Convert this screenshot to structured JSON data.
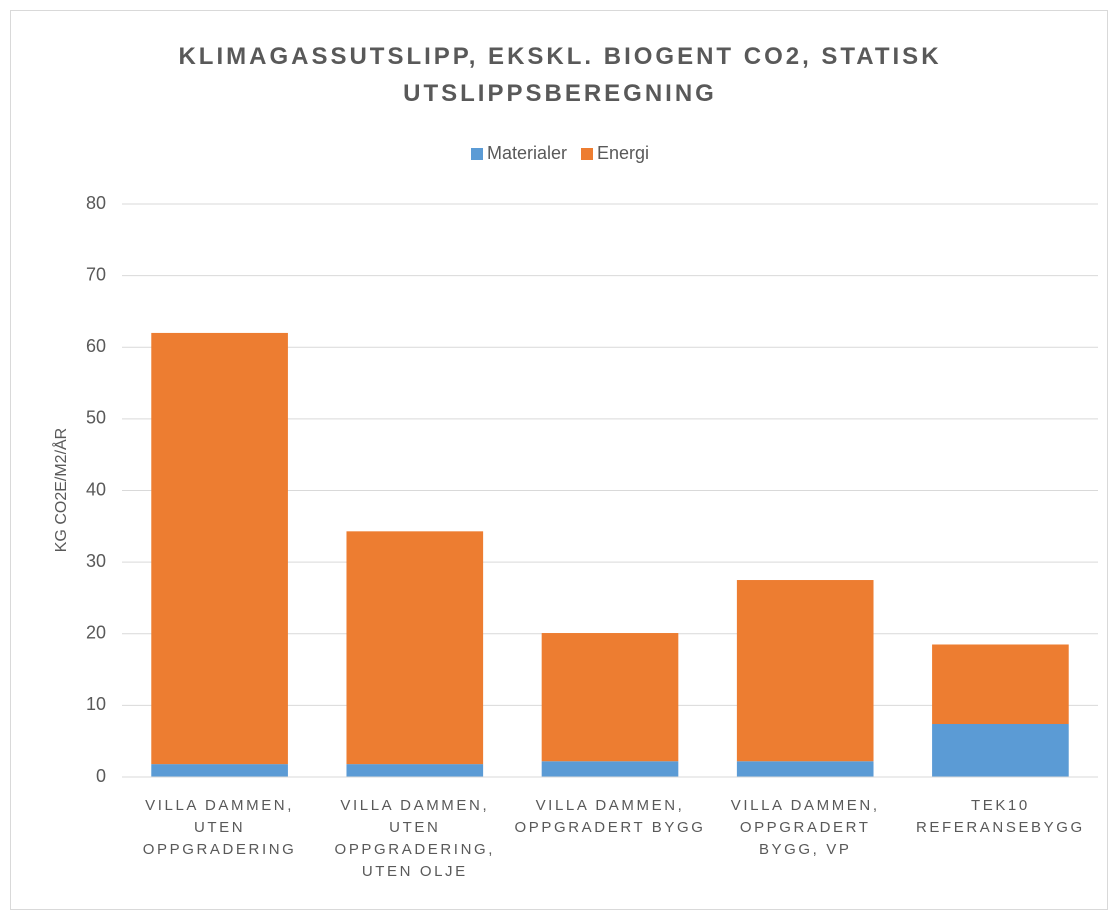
{
  "chart_data": {
    "type": "stacked_bar",
    "title": "KLIMAGASSUTSLIPP, EKSKL. BIOGENT CO2, STATISK UTSLIPPSBEREGNING",
    "y_label": "KG CO2E/M2/ÅR",
    "categories": [
      "VILLA DAMMEN, UTEN OPPGRADERING",
      "VILLA DAMMEN, UTEN OPPGRADERING, UTEN OLJE",
      "VILLA DAMMEN, OPPGRADERT BYGG",
      "VILLA DAMMEN, OPPGRADERT BYGG, VP",
      "TEK10 REFERANSEBYGG"
    ],
    "series": [
      {
        "name": "Materialer",
        "color": "#5b9bd5",
        "values": [
          1.8,
          1.8,
          2.2,
          2.2,
          7.4
        ]
      },
      {
        "name": "Energi",
        "color": "#ed7d31",
        "values": [
          60.2,
          32.5,
          17.9,
          25.3,
          11.1
        ]
      }
    ],
    "ylim": [
      0,
      80
    ],
    "yticks": [
      0,
      10,
      20,
      30,
      40,
      50,
      60,
      70,
      80
    ],
    "grid": true,
    "legend": "top"
  }
}
